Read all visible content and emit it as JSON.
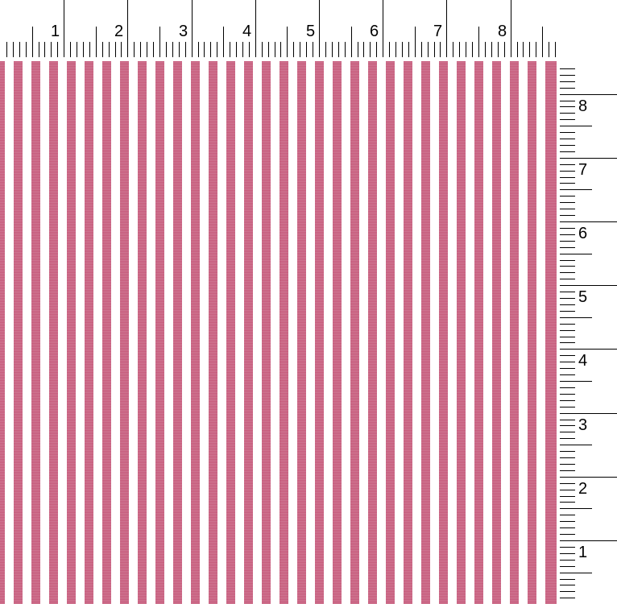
{
  "fabric": {
    "stripe_color": "#c65a7b",
    "ground_color": "#ffffff",
    "pattern": "vertical stripes"
  },
  "top_ruler": {
    "labels": [
      "1",
      "2",
      "3",
      "4",
      "5",
      "6",
      "7",
      "8"
    ]
  },
  "right_ruler": {
    "labels": [
      "1",
      "2",
      "3",
      "4",
      "5",
      "6",
      "7",
      "8"
    ]
  }
}
